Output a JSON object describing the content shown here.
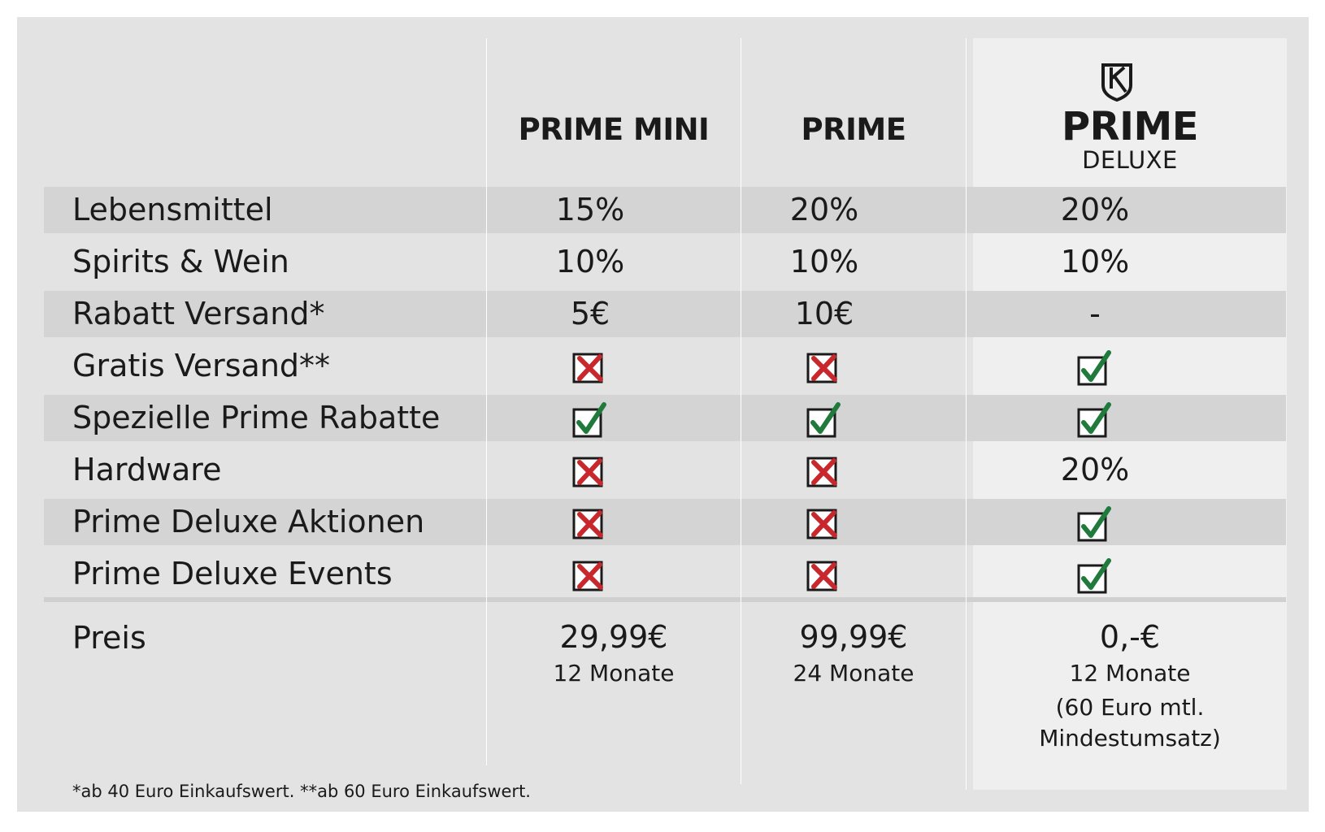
{
  "columns": {
    "mini": "PRIME MINI",
    "prime": "PRIME",
    "deluxe_title": "PRIME",
    "deluxe_subtitle": "DELUXE"
  },
  "logo_icon": "shield-k-icon",
  "colors": {
    "panel": "#e3e3e3",
    "band": "#d4d4d4",
    "deluxe": "#efefef",
    "check": "#1f7a3c",
    "cross": "#c8282d"
  },
  "rows": [
    {
      "label": "Lebensmittel",
      "mini": "15%",
      "prime": "20%",
      "deluxe": "20%"
    },
    {
      "label": "Spirits & Wein",
      "mini": "10%",
      "prime": "10%",
      "deluxe": "10%"
    },
    {
      "label": "Rabatt Versand*",
      "mini": "5€",
      "prime": "10€",
      "deluxe": "-"
    },
    {
      "label": "Gratis Versand**",
      "mini": "cross",
      "prime": "cross",
      "deluxe": "check"
    },
    {
      "label": "Spezielle Prime Rabatte",
      "mini": "check",
      "prime": "check",
      "deluxe": "check"
    },
    {
      "label": "Hardware",
      "mini": "cross",
      "prime": "cross",
      "deluxe": "20%"
    },
    {
      "label": "Prime Deluxe Aktionen",
      "mini": "cross",
      "prime": "cross",
      "deluxe": "check"
    },
    {
      "label": "Prime Deluxe Events",
      "mini": "cross",
      "prime": "cross",
      "deluxe": "check"
    }
  ],
  "price": {
    "label": "Preis",
    "mini": {
      "amount": "29,99€",
      "term": "12 Monate"
    },
    "prime": {
      "amount": "99,99€",
      "term": "24 Monate"
    },
    "deluxe": {
      "amount": "0,-€",
      "term": "12 Monate",
      "note_line1": "(60 Euro mtl.",
      "note_line2": "Mindestumsatz)"
    }
  },
  "footnote": "*ab 40 Euro Einkaufswert. **ab 60 Euro Einkaufswert."
}
